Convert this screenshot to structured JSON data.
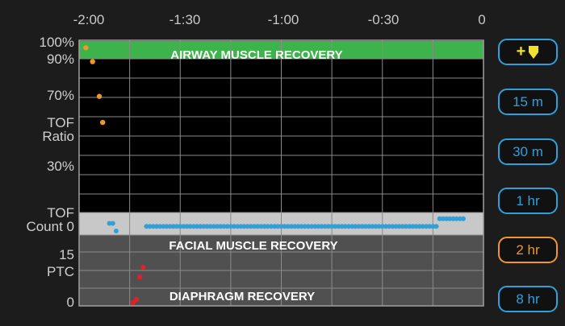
{
  "time_axis": {
    "labels": [
      "-2:00",
      "-1:30",
      "-1:00",
      "-0:30",
      "0"
    ]
  },
  "y_axis": {
    "ratio_labels": [
      "100%",
      "90%",
      "70%",
      "30%"
    ],
    "tof_ratio_label": [
      "TOF",
      "Ratio"
    ],
    "tof_count_label": [
      "TOF",
      "Count 0"
    ],
    "ptc_labels": [
      "15",
      "PTC",
      "0"
    ]
  },
  "bands": {
    "airway": {
      "label": "AIRWAY MUSCLE RECOVERY",
      "color": "#3cb44b"
    },
    "facial": {
      "label": "FACIAL MUSCLE RECOVERY"
    },
    "diaphragm": {
      "label": "DIAPHRAGM RECOVERY"
    }
  },
  "series": {
    "tof_ratio": {
      "color": "#f0962c",
      "points": [
        [
          -118,
          98
        ],
        [
          -116,
          90
        ],
        [
          -114,
          70
        ],
        [
          -113,
          55
        ]
      ]
    },
    "tof_count": {
      "color": "#2ea0dc",
      "segments": [
        {
          "from": -111,
          "to": -110,
          "value": 0.5
        },
        {
          "from": -109,
          "to": -109,
          "value": 0
        },
        {
          "from": -100,
          "to": -14,
          "value": 0.3
        },
        {
          "from": -13,
          "to": -6,
          "value": 0.8
        }
      ]
    },
    "ptc": {
      "color": "#e2202a",
      "points": [
        [
          -104,
          0
        ],
        [
          -103,
          1
        ],
        [
          -102,
          8
        ],
        [
          -101,
          11
        ]
      ]
    }
  },
  "buttons": {
    "add_marker": {
      "label": "+",
      "icon": "marker-flag-icon"
    },
    "range_15m": "15 m",
    "range_30m": "30 m",
    "range_1hr": "1 hr",
    "range_2hr": "2 hr",
    "range_8hr": "8 hr",
    "active": "2 hr"
  }
}
